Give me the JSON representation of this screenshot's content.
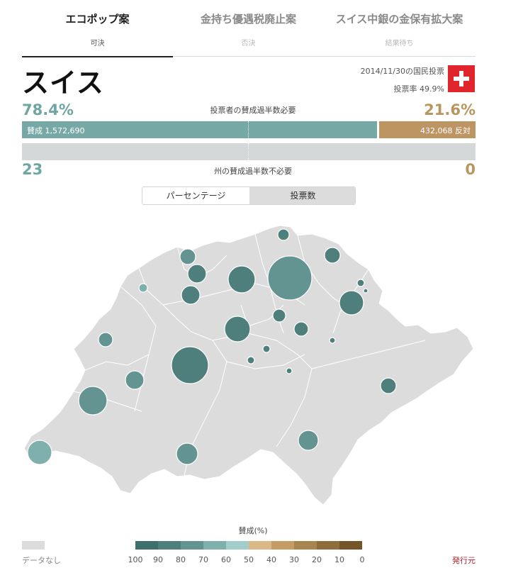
{
  "tabs": [
    {
      "title": "エコポップ案",
      "status": "可決"
    },
    {
      "title": "金持ち優遇税廃止案",
      "status": "否決"
    },
    {
      "title": "スイス中銀の金保有拡大案",
      "status": "結果待ち"
    }
  ],
  "header": {
    "country": "スイス",
    "vote_date": "2014/11/30の国民投票",
    "turnout": "投票率 49.9%"
  },
  "popular": {
    "yes_pct": "78.4%",
    "no_pct": "21.6%",
    "label": "投票者の賛成過半数必要",
    "yes_label": "賛成 1,572,690",
    "no_label": "432,068 反対",
    "yes_fraction": 0.784
  },
  "cantons": {
    "yes_count": "23",
    "no_count": "0",
    "label": "州の賛成過半数不必要"
  },
  "toggle": {
    "percentage": "パーセンテージ",
    "votes": "投票数"
  },
  "legend": {
    "title": "賛成(%)",
    "no_data": "データなし",
    "ticks": [
      "100",
      "90",
      "80",
      "70",
      "60",
      "50",
      "40",
      "30",
      "20",
      "10",
      "0"
    ],
    "colors": [
      "#3f6f6c",
      "#4f7f7c",
      "#639491",
      "#7fb0ad",
      "#a3cdca",
      "#dbb887",
      "#c49d66",
      "#a8844f",
      "#8f6c3b",
      "#74552a"
    ]
  },
  "source": "発行元",
  "colors": {
    "yes": "#6ea6a4",
    "no": "#b9955f",
    "map_fill": "#dcdcdc"
  }
}
